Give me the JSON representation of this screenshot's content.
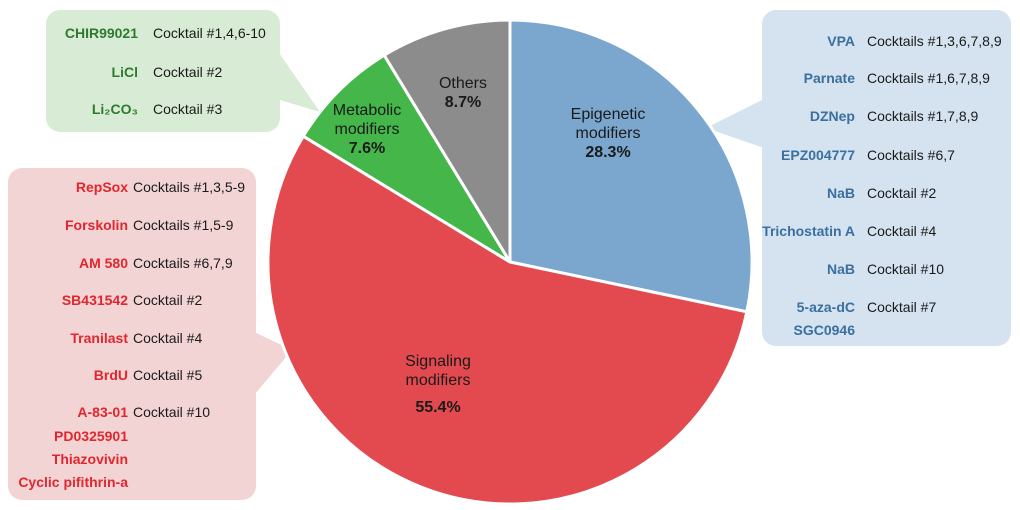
{
  "chart_data": {
    "type": "pie",
    "title": "",
    "slices": [
      {
        "name": "Epigenetic modifiers",
        "value": 28.3,
        "label_line1": "Epigenetic",
        "label_line2": "modifiers",
        "pct": "28.3%",
        "color": "#7ba7cf"
      },
      {
        "name": "Signaling modifiers",
        "value": 55.4,
        "label_line1": "Signaling",
        "label_line2": "modifiers",
        "pct": "55.4%",
        "color": "#e34a50"
      },
      {
        "name": "Metabolic modifiers",
        "value": 7.6,
        "label_line1": "Metabolic",
        "label_line2": "modifiers",
        "pct": "7.6%",
        "color": "#44b64a"
      },
      {
        "name": "Others",
        "value": 8.7,
        "label_line1": "Others",
        "label_line2": "",
        "pct": "8.7%",
        "color": "#8c8c8c"
      }
    ]
  },
  "metabolic_panel": {
    "rows": [
      {
        "drug": "CHIR99021",
        "cocktail": "Cocktail #1,4,6-10"
      },
      {
        "drug": "LiCl",
        "cocktail": "Cocktail #2"
      },
      {
        "drug": "Li₂CO₃",
        "cocktail": "Cocktail #3"
      }
    ]
  },
  "signaling_panel": {
    "rows": [
      {
        "drug": "RepSox",
        "cocktail": "Cocktails #1,3,5-9"
      },
      {
        "drug": "Forskolin",
        "cocktail": "Cocktails #1,5-9"
      },
      {
        "drug": "AM 580",
        "cocktail": "Cocktails #6,7,9"
      },
      {
        "drug": "SB431542",
        "cocktail": "Cocktail #2"
      },
      {
        "drug": "Tranilast",
        "cocktail": "Cocktail #4"
      },
      {
        "drug": "BrdU",
        "cocktail": "Cocktail #5"
      },
      {
        "drug": "A-83-01",
        "cocktail": "Cocktail #10"
      },
      {
        "drug": "PD0325901",
        "cocktail": ""
      },
      {
        "drug": "Thiazovivin",
        "cocktail": ""
      },
      {
        "drug": "Cyclic pifithrin-a",
        "cocktail": ""
      }
    ]
  },
  "epigenetic_panel": {
    "rows": [
      {
        "drug": "VPA",
        "cocktail": "Cocktails #1,3,6,7,8,9"
      },
      {
        "drug": "Parnate",
        "cocktail": "Cocktails #1,6,7,8,9"
      },
      {
        "drug": "DZNep",
        "cocktail": "Cocktails #1,7,8,9"
      },
      {
        "drug": "EPZ004777",
        "cocktail": "Cocktails #6,7"
      },
      {
        "drug": "NaB",
        "cocktail": "Cocktail #2"
      },
      {
        "drug": "Trichostatin A",
        "cocktail": "Cocktail #4"
      },
      {
        "drug": "NaB",
        "cocktail": "Cocktail #10"
      },
      {
        "drug": "5-aza-dC",
        "cocktail": "Cocktail #7"
      },
      {
        "drug": "SGC0946",
        "cocktail": ""
      }
    ]
  }
}
